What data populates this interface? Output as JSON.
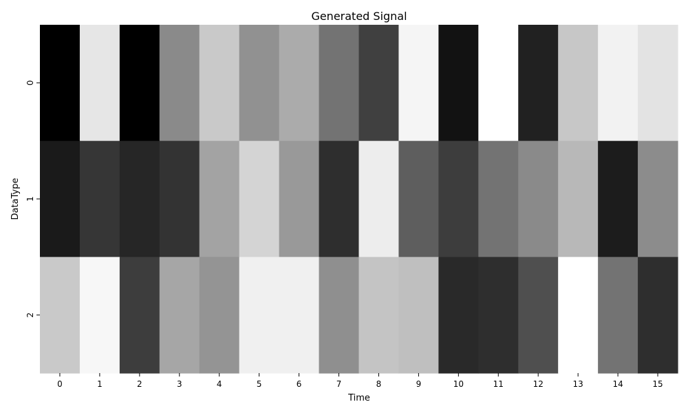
{
  "chart_data": {
    "type": "heatmap",
    "title": "Generated Signal",
    "xlabel": "Time",
    "ylabel": "DataType",
    "x_ticks": [
      "0",
      "1",
      "2",
      "3",
      "4",
      "5",
      "6",
      "7",
      "8",
      "9",
      "10",
      "11",
      "12",
      "13",
      "14",
      "15"
    ],
    "y_ticks": [
      "0",
      "1",
      "2"
    ],
    "colormap": "grayscale (black = low, white = high)",
    "value_range": [
      0,
      1
    ],
    "values": [
      [
        0.0,
        0.9,
        0.0,
        0.54,
        0.79,
        0.57,
        0.67,
        0.45,
        0.25,
        0.96,
        0.07,
        1.0,
        0.13,
        0.78,
        0.95,
        0.89
      ],
      [
        0.1,
        0.21,
        0.15,
        0.2,
        0.64,
        0.83,
        0.6,
        0.18,
        0.93,
        0.37,
        0.24,
        0.45,
        0.54,
        0.72,
        0.11,
        0.55
      ],
      [
        0.79,
        0.97,
        0.24,
        0.65,
        0.58,
        0.94,
        0.94,
        0.56,
        0.77,
        0.75,
        0.16,
        0.18,
        0.31,
        1.0,
        0.45,
        0.18
      ]
    ]
  }
}
